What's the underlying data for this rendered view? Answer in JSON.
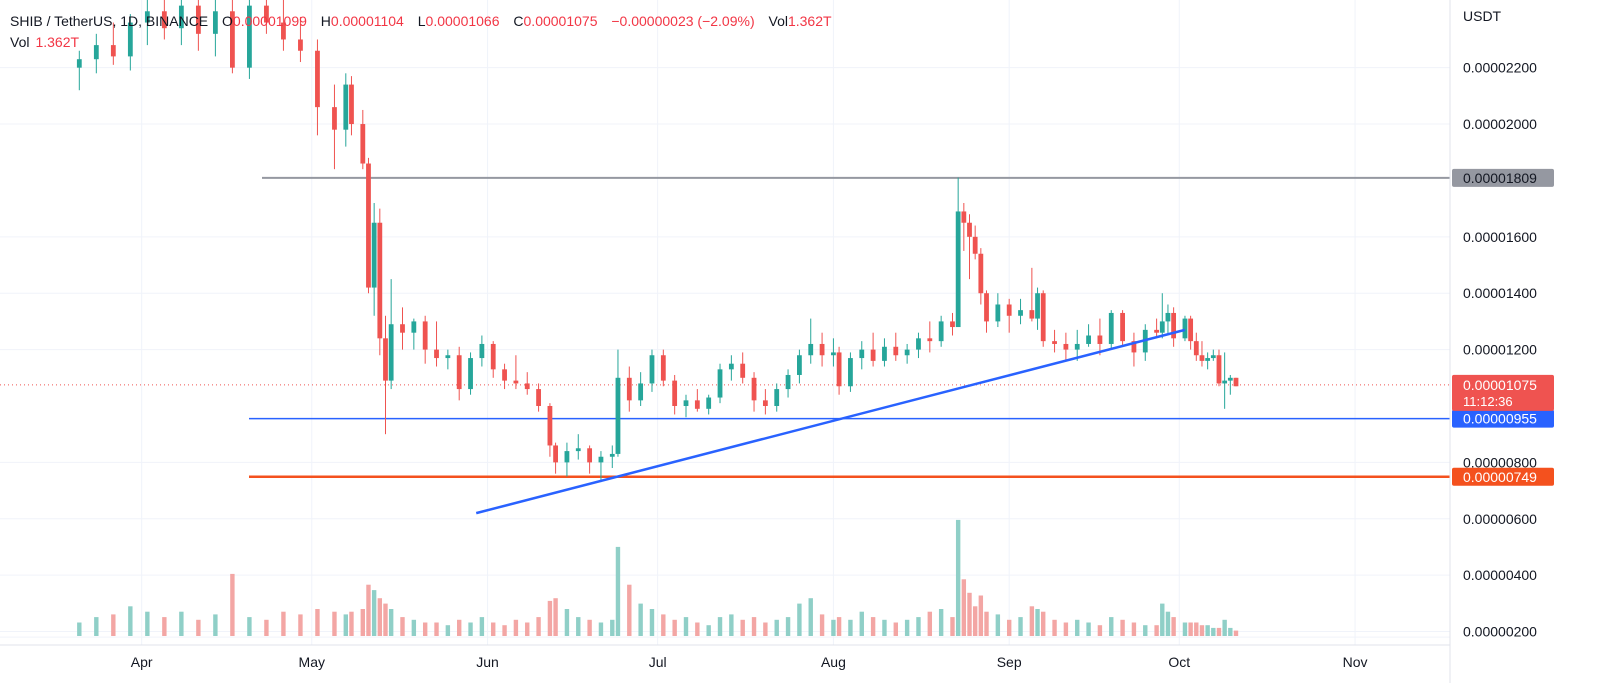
{
  "header": {
    "symbol": "SHIB / TetherUS, 1D, BINANCE",
    "o_label": "O",
    "o_value": "0.00001099",
    "h_label": "H",
    "h_value": "0.00001104",
    "l_label": "L",
    "l_value": "0.00001066",
    "c_label": "C",
    "c_value": "0.00001075",
    "change": "−0.00000023 (−2.09%)",
    "vol_label": "Vol",
    "vol_value": "1.362T",
    "vol_row_label": "Vol",
    "vol_row_value": "1.362T"
  },
  "colors": {
    "up": "#26a69a",
    "down": "#ef5350",
    "up_vol": "#8fcfc7",
    "down_vol": "#f3a6a4",
    "trendline": "#2962ff",
    "support_blue": "#2962ff",
    "support_orange": "#f4511e",
    "resistance_grey": "#9598a1",
    "grid": "#f0f3fa",
    "text": "#131722"
  },
  "chart_data": {
    "type": "candlestick",
    "title": "SHIB / TetherUS, 1D, BINANCE",
    "currency_label": "USDT",
    "y_ticks": [
      "0.00002200",
      "0.00002000",
      "0.00001600",
      "0.00001400",
      "0.00001200",
      "0.00000800",
      "0.00000600",
      "0.00000400",
      "0.00000200"
    ],
    "x_ticks": [
      "Apr",
      "May",
      "Jun",
      "Jul",
      "Aug",
      "Sep",
      "Oct",
      "Nov"
    ],
    "ylim": [
      1.7e-06,
      2.44e-05
    ],
    "levels": [
      {
        "name": "resistance",
        "value": 1.809e-05,
        "label": "0.00001809",
        "color": "#9598a1"
      },
      {
        "name": "support-blue",
        "value": 9.55e-06,
        "label": "0.00000955",
        "color": "#2962ff"
      },
      {
        "name": "support-orange",
        "value": 7.49e-06,
        "label": "0.00000749",
        "color": "#f4511e"
      }
    ],
    "last_price": {
      "value": 1.075e-05,
      "label": "0.00001075",
      "countdown": "11:12:36"
    },
    "trendline": {
      "start": {
        "date": "2022-05-30",
        "price": 6.2e-06
      },
      "end": {
        "date": "2022-10-02",
        "price": 1.27e-05
      }
    },
    "candles": [
      [
        "2022-03-21",
        2.2e-05,
        2.26e-05,
        2.12e-05,
        2.23e-05,
        0.5
      ],
      [
        "2022-03-24",
        2.23e-05,
        2.32e-05,
        2.18e-05,
        2.28e-05,
        0.7
      ],
      [
        "2022-03-27",
        2.28e-05,
        2.36e-05,
        2.21e-05,
        2.24e-05,
        0.8
      ],
      [
        "2022-03-30",
        2.24e-05,
        2.39e-05,
        2.19e-05,
        2.36e-05,
        1.1
      ],
      [
        "2022-04-02",
        2.36e-05,
        2.45e-05,
        2.28e-05,
        2.4e-05,
        0.9
      ],
      [
        "2022-04-05",
        2.4e-05,
        2.46e-05,
        2.3e-05,
        2.34e-05,
        0.7
      ],
      [
        "2022-04-08",
        2.34e-05,
        2.46e-05,
        2.28e-05,
        2.42e-05,
        0.9
      ],
      [
        "2022-04-11",
        2.42e-05,
        2.46e-05,
        2.26e-05,
        2.32e-05,
        0.6
      ],
      [
        "2022-04-14",
        2.32e-05,
        2.46e-05,
        2.24e-05,
        2.4e-05,
        0.8
      ],
      [
        "2022-04-17",
        2.4e-05,
        2.46e-05,
        2.18e-05,
        2.2e-05,
        2.3
      ],
      [
        "2022-04-20",
        2.2e-05,
        2.46e-05,
        2.16e-05,
        2.42e-05,
        0.7
      ],
      [
        "2022-04-23",
        2.42e-05,
        2.46e-05,
        2.32e-05,
        2.36e-05,
        0.6
      ],
      [
        "2022-04-26",
        2.36e-05,
        2.46e-05,
        2.26e-05,
        2.3e-05,
        0.9
      ],
      [
        "2022-04-29",
        2.3e-05,
        2.38e-05,
        2.22e-05,
        2.26e-05,
        0.8
      ],
      [
        "2022-05-02",
        2.26e-05,
        2.3e-05,
        1.96e-05,
        2.06e-05,
        1.0
      ],
      [
        "2022-05-05",
        2.06e-05,
        2.14e-05,
        1.84e-05,
        1.98e-05,
        0.9
      ],
      [
        "2022-05-07",
        1.98e-05,
        2.18e-05,
        1.92e-05,
        2.14e-05,
        0.8
      ],
      [
        "2022-05-08",
        2.14e-05,
        2.17e-05,
        1.96e-05,
        2e-05,
        0.9
      ],
      [
        "2022-05-10",
        2e-05,
        2.05e-05,
        1.84e-05,
        1.86e-05,
        1.0
      ],
      [
        "2022-05-11",
        1.86e-05,
        1.88e-05,
        1.4e-05,
        1.42e-05,
        1.9
      ],
      [
        "2022-05-12",
        1.42e-05,
        1.72e-05,
        1.32e-05,
        1.65e-05,
        1.7
      ],
      [
        "2022-05-13",
        1.65e-05,
        1.7e-05,
        1.18e-05,
        1.24e-05,
        1.4
      ],
      [
        "2022-05-14",
        1.24e-05,
        1.32e-05,
        9e-06,
        1.09e-05,
        1.2
      ],
      [
        "2022-05-15",
        1.09e-05,
        1.45e-05,
        1.06e-05,
        1.29e-05,
        1.0
      ],
      [
        "2022-05-17",
        1.29e-05,
        1.35e-05,
        1.2e-05,
        1.26e-05,
        0.7
      ],
      [
        "2022-05-19",
        1.26e-05,
        1.31e-05,
        1.2e-05,
        1.3e-05,
        0.6
      ],
      [
        "2022-05-21",
        1.3e-05,
        1.32e-05,
        1.15e-05,
        1.2e-05,
        0.5
      ],
      [
        "2022-05-23",
        1.2e-05,
        1.3e-05,
        1.14e-05,
        1.17e-05,
        0.5
      ],
      [
        "2022-05-25",
        1.17e-05,
        1.2e-05,
        1.13e-05,
        1.18e-05,
        0.4
      ],
      [
        "2022-05-27",
        1.18e-05,
        1.21e-05,
        1.02e-05,
        1.06e-05,
        0.6
      ],
      [
        "2022-05-29",
        1.06e-05,
        1.19e-05,
        1.04e-05,
        1.17e-05,
        0.5
      ],
      [
        "2022-05-31",
        1.17e-05,
        1.25e-05,
        1.14e-05,
        1.22e-05,
        0.7
      ],
      [
        "2022-06-02",
        1.22e-05,
        1.23e-05,
        1.1e-05,
        1.13e-05,
        0.5
      ],
      [
        "2022-06-04",
        1.13e-05,
        1.15e-05,
        1.06e-05,
        1.09e-05,
        0.4
      ],
      [
        "2022-06-06",
        1.09e-05,
        1.18e-05,
        1.06e-05,
        1.08e-05,
        0.6
      ],
      [
        "2022-06-08",
        1.08e-05,
        1.12e-05,
        1.04e-05,
        1.06e-05,
        0.5
      ],
      [
        "2022-06-10",
        1.06e-05,
        1.08e-05,
        9.8e-06,
        1e-05,
        0.7
      ],
      [
        "2022-06-12",
        1e-05,
        1.01e-05,
        8.2e-06,
        8.6e-06,
        1.3
      ],
      [
        "2022-06-13",
        8.6e-06,
        8.7e-06,
        7.6e-06,
        8e-06,
        1.4
      ],
      [
        "2022-06-15",
        8e-06,
        8.7e-06,
        7.5e-06,
        8.4e-06,
        1.0
      ],
      [
        "2022-06-17",
        8.4e-06,
        9e-06,
        8.1e-06,
        8.5e-06,
        0.7
      ],
      [
        "2022-06-19",
        8.5e-06,
        8.6e-06,
        7.6e-06,
        8e-06,
        0.6
      ],
      [
        "2022-06-21",
        8e-06,
        8.4e-06,
        7.3e-06,
        8.2e-06,
        0.5
      ],
      [
        "2022-06-23",
        8.2e-06,
        8.6e-06,
        7.8e-06,
        8.3e-06,
        0.6
      ],
      [
        "2022-06-24",
        8.3e-06,
        1.2e-05,
        8.2e-06,
        1.1e-05,
        3.3
      ],
      [
        "2022-06-26",
        1.1e-05,
        1.14e-05,
        9.8e-06,
        1.02e-05,
        1.9
      ],
      [
        "2022-06-28",
        1.02e-05,
        1.12e-05,
        1e-05,
        1.08e-05,
        1.2
      ],
      [
        "2022-06-30",
        1.08e-05,
        1.2e-05,
        1.05e-05,
        1.18e-05,
        1.0
      ],
      [
        "2022-07-02",
        1.18e-05,
        1.2e-05,
        1.07e-05,
        1.09e-05,
        0.8
      ],
      [
        "2022-07-04",
        1.09e-05,
        1.11e-05,
        9.7e-06,
        1e-05,
        0.6
      ],
      [
        "2022-07-06",
        1e-05,
        1.04e-05,
        9.6e-06,
        1.02e-05,
        0.7
      ],
      [
        "2022-07-08",
        1.02e-05,
        1.06e-05,
        9.8e-06,
        9.9e-06,
        0.5
      ],
      [
        "2022-07-10",
        9.9e-06,
        1.04e-05,
        9.7e-06,
        1.03e-05,
        0.4
      ],
      [
        "2022-07-12",
        1.03e-05,
        1.15e-05,
        1.01e-05,
        1.13e-05,
        0.7
      ],
      [
        "2022-07-14",
        1.13e-05,
        1.18e-05,
        1.09e-05,
        1.15e-05,
        0.8
      ],
      [
        "2022-07-16",
        1.15e-05,
        1.19e-05,
        1.08e-05,
        1.1e-05,
        0.6
      ],
      [
        "2022-07-18",
        1.1e-05,
        1.12e-05,
        9.8e-06,
        1.02e-05,
        0.7
      ],
      [
        "2022-07-20",
        1.02e-05,
        1.06e-05,
        9.7e-06,
        1e-05,
        0.5
      ],
      [
        "2022-07-22",
        1e-05,
        1.08e-05,
        9.8e-06,
        1.06e-05,
        0.6
      ],
      [
        "2022-07-24",
        1.06e-05,
        1.13e-05,
        1.03e-05,
        1.11e-05,
        0.7
      ],
      [
        "2022-07-26",
        1.11e-05,
        1.2e-05,
        1.08e-05,
        1.18e-05,
        1.2
      ],
      [
        "2022-07-28",
        1.18e-05,
        1.31e-05,
        1.15e-05,
        1.22e-05,
        1.4
      ],
      [
        "2022-07-30",
        1.22e-05,
        1.26e-05,
        1.14e-05,
        1.18e-05,
        0.8
      ],
      [
        "2022-08-01",
        1.18e-05,
        1.24e-05,
        1.14e-05,
        1.19e-05,
        0.6
      ],
      [
        "2022-08-02",
        1.19e-05,
        1.21e-05,
        1.04e-05,
        1.07e-05,
        0.7
      ],
      [
        "2022-08-04",
        1.07e-05,
        1.19e-05,
        1.05e-05,
        1.17e-05,
        0.6
      ],
      [
        "2022-08-06",
        1.17e-05,
        1.23e-05,
        1.13e-05,
        1.2e-05,
        0.9
      ],
      [
        "2022-08-08",
        1.2e-05,
        1.26e-05,
        1.14e-05,
        1.16e-05,
        0.7
      ],
      [
        "2022-08-10",
        1.16e-05,
        1.24e-05,
        1.14e-05,
        1.21e-05,
        0.6
      ],
      [
        "2022-08-12",
        1.21e-05,
        1.26e-05,
        1.16e-05,
        1.18e-05,
        0.5
      ],
      [
        "2022-08-14",
        1.18e-05,
        1.22e-05,
        1.15e-05,
        1.2e-05,
        0.6
      ],
      [
        "2022-08-16",
        1.2e-05,
        1.26e-05,
        1.17e-05,
        1.24e-05,
        0.7
      ],
      [
        "2022-08-18",
        1.24e-05,
        1.3e-05,
        1.19e-05,
        1.23e-05,
        0.9
      ],
      [
        "2022-08-20",
        1.23e-05,
        1.32e-05,
        1.21e-05,
        1.3e-05,
        1.0
      ],
      [
        "2022-08-22",
        1.3e-05,
        1.33e-05,
        1.25e-05,
        1.28e-05,
        0.7
      ],
      [
        "2022-08-23",
        1.28e-05,
        1.81e-05,
        1.28e-05,
        1.69e-05,
        4.3
      ],
      [
        "2022-08-24",
        1.69e-05,
        1.72e-05,
        1.55e-05,
        1.65e-05,
        2.1
      ],
      [
        "2022-08-25",
        1.65e-05,
        1.68e-05,
        1.45e-05,
        1.6e-05,
        1.6
      ],
      [
        "2022-08-26",
        1.6e-05,
        1.64e-05,
        1.52e-05,
        1.54e-05,
        1.1
      ],
      [
        "2022-08-27",
        1.54e-05,
        1.56e-05,
        1.36e-05,
        1.4e-05,
        1.5
      ],
      [
        "2022-08-28",
        1.4e-05,
        1.41e-05,
        1.26e-05,
        1.3e-05,
        0.9
      ],
      [
        "2022-08-30",
        1.3e-05,
        1.4e-05,
        1.28e-05,
        1.36e-05,
        0.8
      ],
      [
        "2022-09-01",
        1.36e-05,
        1.38e-05,
        1.26e-05,
        1.32e-05,
        0.6
      ],
      [
        "2022-09-03",
        1.32e-05,
        1.38e-05,
        1.29e-05,
        1.34e-05,
        0.7
      ],
      [
        "2022-09-05",
        1.34e-05,
        1.49e-05,
        1.3e-05,
        1.31e-05,
        1.1
      ],
      [
        "2022-09-06",
        1.31e-05,
        1.42e-05,
        1.27e-05,
        1.4e-05,
        1.0
      ],
      [
        "2022-09-07",
        1.4e-05,
        1.41e-05,
        1.21e-05,
        1.23e-05,
        0.9
      ],
      [
        "2022-09-09",
        1.23e-05,
        1.27e-05,
        1.19e-05,
        1.22e-05,
        0.6
      ],
      [
        "2022-09-11",
        1.22e-05,
        1.26e-05,
        1.16e-05,
        1.2e-05,
        0.5
      ],
      [
        "2022-09-13",
        1.2e-05,
        1.27e-05,
        1.16e-05,
        1.22e-05,
        0.6
      ],
      [
        "2022-09-15",
        1.22e-05,
        1.29e-05,
        1.21e-05,
        1.25e-05,
        0.5
      ],
      [
        "2022-09-17",
        1.25e-05,
        1.31e-05,
        1.18e-05,
        1.22e-05,
        0.4
      ],
      [
        "2022-09-19",
        1.22e-05,
        1.34e-05,
        1.2e-05,
        1.33e-05,
        0.7
      ],
      [
        "2022-09-21",
        1.33e-05,
        1.34e-05,
        1.21e-05,
        1.23e-05,
        0.6
      ],
      [
        "2022-09-23",
        1.23e-05,
        1.26e-05,
        1.14e-05,
        1.19e-05,
        0.5
      ],
      [
        "2022-09-25",
        1.19e-05,
        1.29e-05,
        1.16e-05,
        1.27e-05,
        0.4
      ],
      [
        "2022-09-27",
        1.27e-05,
        1.31e-05,
        1.24e-05,
        1.26e-05,
        0.4
      ],
      [
        "2022-09-28",
        1.26e-05,
        1.4e-05,
        1.24e-05,
        1.3e-05,
        1.2
      ],
      [
        "2022-09-29",
        1.3e-05,
        1.36e-05,
        1.25e-05,
        1.33e-05,
        0.9
      ],
      [
        "2022-09-30",
        1.33e-05,
        1.35e-05,
        1.21e-05,
        1.24e-05,
        0.7
      ],
      [
        "2022-10-02",
        1.24e-05,
        1.32e-05,
        1.23e-05,
        1.31e-05,
        0.5
      ],
      [
        "2022-10-03",
        1.31e-05,
        1.32e-05,
        1.2e-05,
        1.23e-05,
        0.5
      ],
      [
        "2022-10-04",
        1.23e-05,
        1.26e-05,
        1.16e-05,
        1.18e-05,
        0.5
      ],
      [
        "2022-10-05",
        1.18e-05,
        1.23e-05,
        1.14e-05,
        1.16e-05,
        0.4
      ],
      [
        "2022-10-06",
        1.16e-05,
        1.19e-05,
        1.13e-05,
        1.17e-05,
        0.4
      ],
      [
        "2022-10-07",
        1.17e-05,
        1.2e-05,
        1.16e-05,
        1.18e-05,
        0.3
      ],
      [
        "2022-10-08",
        1.18e-05,
        1.2e-05,
        1.07e-05,
        1.08e-05,
        0.3
      ],
      [
        "2022-10-09",
        1.08e-05,
        1.19e-05,
        9.9e-06,
        1.09e-05,
        0.6
      ],
      [
        "2022-10-10",
        1.09e-05,
        1.11e-05,
        1.04e-05,
        1.1e-05,
        0.3
      ],
      [
        "2022-10-11",
        1.1e-05,
        1.1e-05,
        1.07e-05,
        1.07e-05,
        0.2
      ]
    ]
  }
}
